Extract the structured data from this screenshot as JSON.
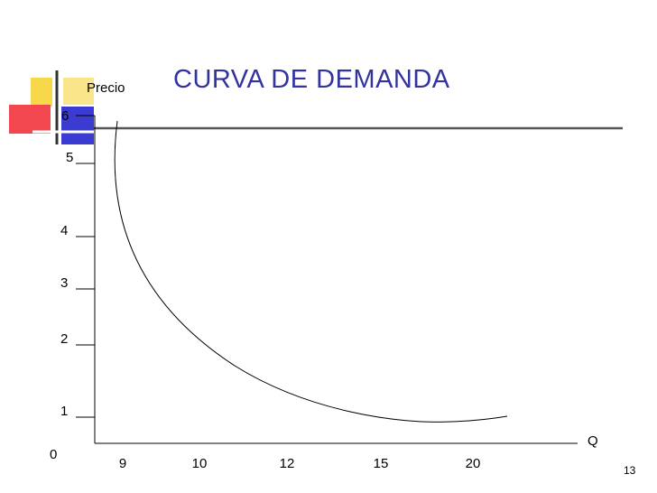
{
  "page_number": "13",
  "colors": {
    "title": "#3333a0",
    "axis": "#000000",
    "curve": "#000000"
  },
  "chart_data": {
    "type": "line",
    "title": "CURVA DE DEMANDA",
    "xlabel": "Q",
    "ylabel": "Precio",
    "origin_label": "0",
    "x_tick_labels": [
      "9",
      "10",
      "12",
      "15",
      "20"
    ],
    "y_tick_labels": [
      "1",
      "2",
      "3",
      "4",
      "5",
      "6"
    ],
    "series": [
      {
        "x": [
          9,
          9,
          10,
          12,
          15,
          20,
          21
        ],
        "y": [
          6,
          5.2,
          3.1,
          1.6,
          0.6,
          0.4,
          0.5
        ]
      }
    ],
    "grid": false,
    "legend": "none"
  }
}
